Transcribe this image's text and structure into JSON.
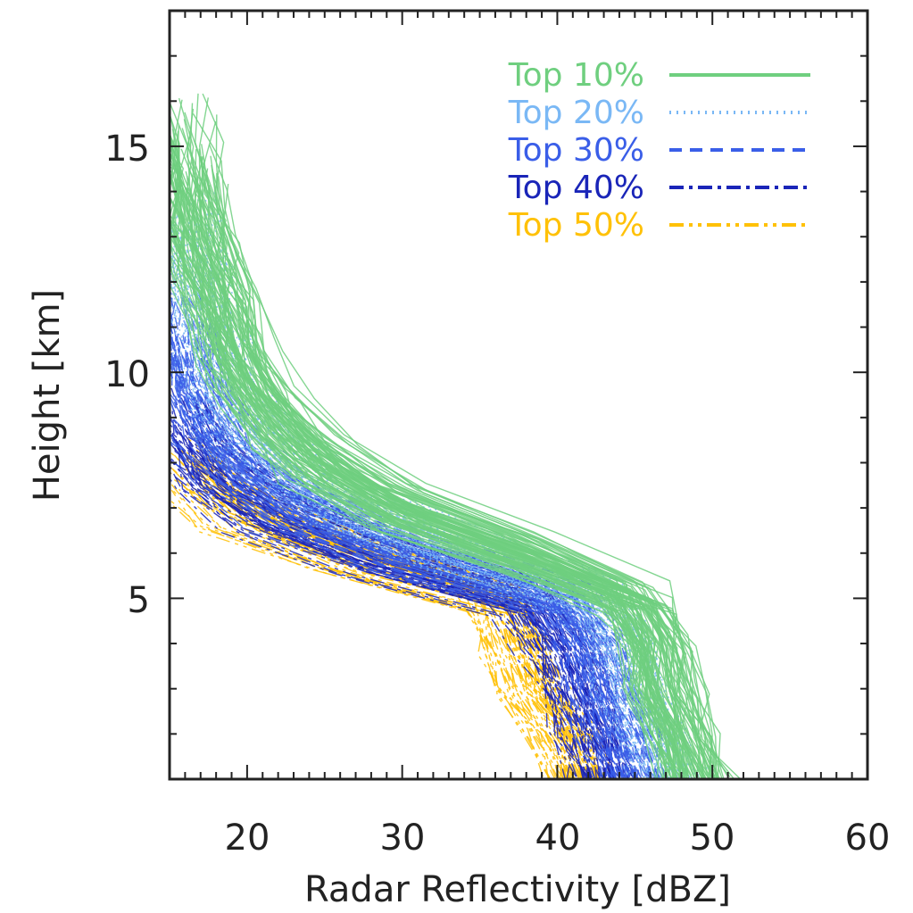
{
  "chart_data": {
    "type": "line",
    "xlabel": "Radar Reflectivity [dBZ]",
    "ylabel": "Height [km]",
    "xlim": [
      15,
      60
    ],
    "ylim": [
      1,
      18
    ],
    "x_ticks": [
      "20",
      "30",
      "40",
      "50",
      "60"
    ],
    "y_ticks": [
      "5",
      "10",
      "15"
    ],
    "legend_position": "top-right",
    "grid": false,
    "series": [
      {
        "name": "Top 10%",
        "color": "#6fcf7f",
        "line_style": "solid",
        "representative_profile": {
          "height_km": [
            1,
            2,
            3,
            4,
            5,
            6,
            7,
            8,
            9,
            10,
            11,
            12,
            13,
            14,
            15
          ],
          "reflectivity_dBZ": [
            49,
            48,
            47,
            46.5,
            45,
            38,
            30,
            25,
            22,
            20,
            19,
            18,
            17,
            16.5,
            16
          ]
        }
      },
      {
        "name": "Top 20%",
        "color": "#7ab8f5",
        "line_style": "dotted",
        "representative_profile": {
          "height_km": [
            1,
            2,
            3,
            4,
            5,
            6,
            7,
            8,
            9,
            10,
            11,
            12,
            13
          ],
          "reflectivity_dBZ": [
            47,
            46,
            45,
            44,
            42,
            33,
            26,
            22,
            19,
            18,
            17,
            16.5,
            16
          ]
        }
      },
      {
        "name": "Top 30%",
        "color": "#3a5ee8",
        "line_style": "dashed",
        "representative_profile": {
          "height_km": [
            1,
            2,
            3,
            4,
            5,
            6,
            7,
            8,
            9,
            10,
            11
          ],
          "reflectivity_dBZ": [
            45,
            44,
            43,
            42,
            40,
            30,
            23,
            19,
            17,
            16,
            15.5
          ]
        }
      },
      {
        "name": "Top 40%",
        "color": "#1a25b8",
        "line_style": "dash-dot",
        "representative_profile": {
          "height_km": [
            1,
            2,
            3,
            4,
            5,
            6,
            7,
            8,
            9
          ],
          "reflectivity_dBZ": [
            43,
            42,
            41,
            40,
            38,
            28,
            21,
            17,
            15.5
          ]
        }
      },
      {
        "name": "Top 50%",
        "color": "#ffc107",
        "line_style": "dash-dot-dot",
        "representative_profile": {
          "height_km": [
            1,
            2,
            3,
            4,
            5,
            6,
            7,
            8
          ],
          "reflectivity_dBZ": [
            41,
            40,
            38,
            37,
            36,
            26,
            19,
            16
          ]
        }
      }
    ]
  }
}
